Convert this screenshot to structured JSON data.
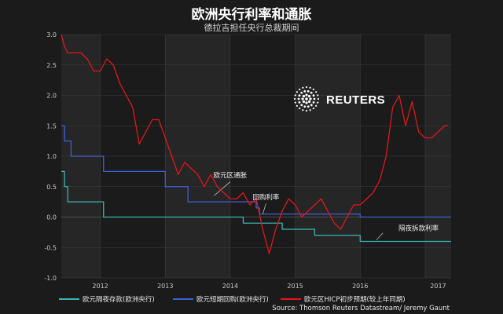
{
  "title": "欧洲央行利率和通胀",
  "subtitle": "德拉吉担任央行总裁期间",
  "watermark": "REUTERS",
  "source": "Source: Thomson Reuters Datastream/ Jeremy Gaunt",
  "colors": {
    "background": "#1b1b1b",
    "grid": "#3c3c3c",
    "band": "#262626",
    "deposit": "#3ab5b0",
    "refi": "#3f5fd8",
    "hicp": "#e3161b"
  },
  "chart_data": {
    "type": "line",
    "title": "欧洲央行利率和通胀",
    "subtitle": "德拉吉担任央行总裁期间",
    "xlim": [
      2011.4,
      2017.4
    ],
    "ylim": [
      -1.0,
      3.0
    ],
    "x_ticks": [
      2012.0,
      2013.0,
      2014.0,
      2015.0,
      2016.0,
      2017.0
    ],
    "x_tick_labels": [
      "2012",
      "2013",
      "2014",
      "2015",
      "2016",
      "2017"
    ],
    "y_ticks": [
      3.0,
      2.5,
      2.0,
      1.5,
      1.0,
      0.5,
      0.0,
      -0.5,
      -1.0
    ],
    "y_tick_labels": [
      "3.0",
      "2.5",
      "2.0",
      "1.5",
      "1.0",
      "0.5",
      "0.0",
      "-0.5",
      "-1.0"
    ],
    "grid": true,
    "legend_position": "bottom",
    "series": [
      {
        "name": "欧元隔夜存款(欧洲央行)",
        "color": "#3ab5b0",
        "step": true,
        "x": [
          2011.4,
          2011.45,
          2011.5,
          2012.05,
          2013.35,
          2014.0,
          2014.2,
          2014.8,
          2015.3,
          2016.0,
          2017.0,
          2017.4
        ],
        "y": [
          0.75,
          0.5,
          0.25,
          0.0,
          0.0,
          0.0,
          -0.1,
          -0.2,
          -0.3,
          -0.4,
          -0.4,
          -0.4
        ]
      },
      {
        "name": "欧元短期回购(欧洲央行)",
        "color": "#3f5fd8",
        "step": true,
        "x": [
          2011.4,
          2011.45,
          2011.55,
          2012.05,
          2013.0,
          2013.35,
          2013.9,
          2014.4,
          2014.45,
          2015.0,
          2016.0,
          2017.4
        ],
        "y": [
          1.5,
          1.25,
          1.0,
          0.75,
          0.5,
          0.25,
          0.25,
          0.15,
          0.05,
          0.05,
          0.0,
          0.0
        ]
      },
      {
        "name": "欧元区HICP初步预期(较上年同期)",
        "color": "#e3161b",
        "step": false,
        "x": [
          2011.4,
          2011.45,
          2011.5,
          2011.6,
          2011.7,
          2011.8,
          2011.9,
          2012.0,
          2012.1,
          2012.2,
          2012.3,
          2012.4,
          2012.5,
          2012.6,
          2012.7,
          2012.8,
          2012.9,
          2013.0,
          2013.1,
          2013.2,
          2013.3,
          2013.4,
          2013.5,
          2013.6,
          2013.7,
          2013.8,
          2013.9,
          2014.0,
          2014.1,
          2014.2,
          2014.3,
          2014.4,
          2014.5,
          2014.6,
          2014.7,
          2014.8,
          2014.9,
          2015.0,
          2015.1,
          2015.2,
          2015.3,
          2015.4,
          2015.5,
          2015.6,
          2015.7,
          2015.8,
          2015.9,
          2016.0,
          2016.1,
          2016.2,
          2016.3,
          2016.4,
          2016.5,
          2016.6,
          2016.7,
          2016.8,
          2016.9,
          2017.0,
          2017.1,
          2017.2,
          2017.3,
          2017.35
        ],
        "y": [
          3.0,
          2.8,
          2.7,
          2.7,
          2.7,
          2.6,
          2.4,
          2.4,
          2.6,
          2.5,
          2.2,
          2.0,
          1.8,
          1.2,
          1.4,
          1.6,
          1.6,
          1.3,
          1.0,
          0.7,
          0.9,
          0.8,
          0.7,
          0.5,
          0.7,
          0.5,
          0.4,
          0.3,
          0.3,
          0.4,
          0.2,
          0.3,
          -0.2,
          -0.6,
          -0.2,
          0.1,
          0.3,
          0.2,
          0.0,
          0.1,
          0.2,
          0.3,
          0.1,
          -0.1,
          -0.2,
          0.0,
          0.2,
          0.2,
          0.3,
          0.4,
          0.6,
          1.0,
          1.8,
          2.0,
          1.5,
          1.9,
          1.4,
          1.3,
          1.3,
          1.4,
          1.5,
          1.5
        ]
      }
    ],
    "annotations": [
      {
        "text": "欧元区通胀",
        "x": 2014.0,
        "y": 0.65
      },
      {
        "text": "回购利率",
        "x": 2014.55,
        "y": 0.29
      },
      {
        "text": "隔夜拆款利率",
        "x": 2016.9,
        "y": -0.22
      }
    ]
  }
}
